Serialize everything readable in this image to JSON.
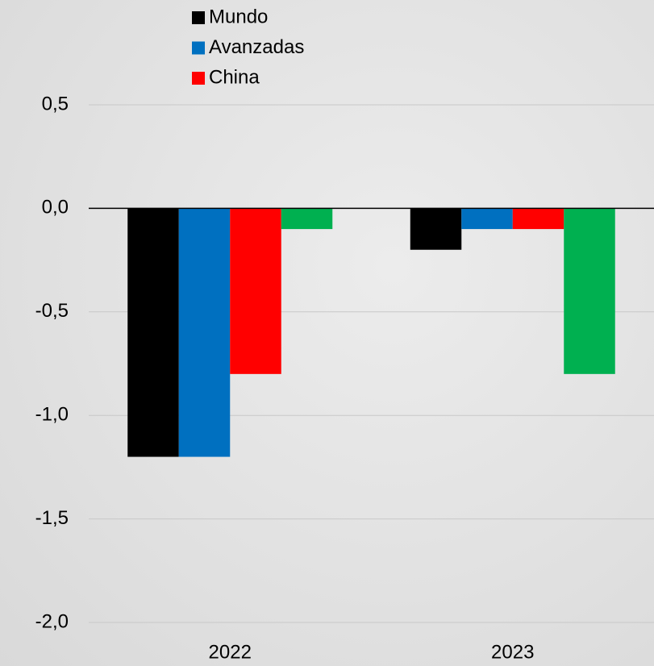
{
  "chart_data": {
    "type": "bar",
    "categories": [
      "2022",
      "2023"
    ],
    "series": [
      {
        "name": "Mundo",
        "color": "#000000",
        "values": [
          -1.2,
          -0.2
        ]
      },
      {
        "name": "Avanzadas",
        "color": "#0070c0",
        "values": [
          -1.2,
          -0.1
        ]
      },
      {
        "name": "China",
        "color": "#ff0000",
        "values": [
          -0.8,
          -0.1
        ]
      },
      {
        "color": "#00b050",
        "values": [
          -0.1,
          -0.8
        ]
      }
    ],
    "ylim": [
      -2.0,
      0.5
    ],
    "yticks": [
      {
        "value": 0.5,
        "label": "0,5"
      },
      {
        "value": 0.0,
        "label": "0,0"
      },
      {
        "value": -0.5,
        "label": "-0,5"
      },
      {
        "value": -1.0,
        "label": "-1,0"
      },
      {
        "value": -1.5,
        "label": "-1,5"
      },
      {
        "value": -2.0,
        "label": "-2,0"
      }
    ],
    "grid": true
  }
}
